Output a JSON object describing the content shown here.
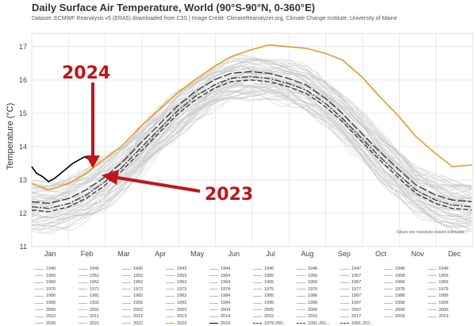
{
  "header": {
    "title": "Daily Surface Air Temperature, World (90°S-90°N, 0-360°E)",
    "subtitle": "Dataset: ECMWF Reanalysis v5 (ERA5) downloaded from C3S | Image Credit: ClimateReanalyzer.org, Climate Change Institute, University of Maine"
  },
  "colors": {
    "background_years": "#c8c8c8",
    "year_2023": "#e39a2b",
    "year_2024": "#000000",
    "climatology": "#333333",
    "annotation": "#c0141a",
    "grid": "#e3e3e3"
  },
  "annotations": {
    "label_2024": "2024",
    "label_2023": "2023",
    "note": "Values are reanalysis-based estimates"
  },
  "chart_data": {
    "type": "line",
    "title": "Daily Surface Air Temperature, World (90°S-90°N, 0-360°E)",
    "xlabel": "",
    "ylabel": "Temperature (°C)",
    "ylim": [
      11,
      17.4
    ],
    "yticks": [
      11,
      12,
      13,
      14,
      15,
      16,
      17
    ],
    "xticks": [
      "Jan",
      "Feb",
      "Mar",
      "Apr",
      "May",
      "Jun",
      "Jul",
      "Aug",
      "Sep",
      "Oct",
      "Nov",
      "Dec"
    ],
    "xlim": [
      1,
      366
    ],
    "grid": true,
    "legend": "bottom",
    "series": [
      {
        "name": "2023",
        "style": "solid",
        "color": "#e39a2b",
        "x": [
          1,
          15,
          32,
          46,
          60,
          75,
          91,
          106,
          121,
          136,
          152,
          166,
          182,
          197,
          213,
          228,
          244,
          258,
          274,
          289,
          305,
          319,
          335,
          349,
          365
        ],
        "y": [
          12.9,
          12.7,
          12.9,
          13.2,
          13.6,
          14.0,
          14.6,
          15.1,
          15.6,
          16.0,
          16.4,
          16.7,
          16.9,
          17.05,
          17.0,
          16.95,
          16.8,
          16.6,
          16.1,
          15.5,
          14.9,
          14.3,
          13.8,
          13.4,
          13.45
        ]
      },
      {
        "name": "2024",
        "style": "solid",
        "color": "#000000",
        "x": [
          1,
          5,
          10,
          15,
          20,
          25,
          30,
          35,
          40,
          45,
          49
        ],
        "y": [
          13.4,
          13.2,
          13.1,
          12.95,
          13.05,
          13.2,
          13.35,
          13.5,
          13.6,
          13.7,
          13.6
        ]
      },
      {
        "name": "1979-2000 mean",
        "style": "dashed",
        "color": "#333333",
        "x": [
          1,
          15,
          32,
          46,
          60,
          75,
          91,
          106,
          121,
          136,
          152,
          166,
          182,
          197,
          213,
          228,
          244,
          258,
          274,
          289,
          305,
          319,
          335,
          349,
          365
        ],
        "y": [
          12.1,
          12.05,
          12.2,
          12.45,
          12.8,
          13.25,
          13.85,
          14.4,
          14.95,
          15.4,
          15.75,
          15.95,
          16.0,
          15.95,
          15.8,
          15.6,
          15.2,
          14.75,
          14.15,
          13.6,
          13.05,
          12.6,
          12.3,
          12.15,
          12.1
        ]
      },
      {
        "name": "1981-2010 mean",
        "style": "dashdot",
        "color": "#333333",
        "x": [
          1,
          15,
          32,
          46,
          60,
          75,
          91,
          106,
          121,
          136,
          152,
          166,
          182,
          197,
          213,
          228,
          244,
          258,
          274,
          289,
          305,
          319,
          335,
          349,
          365
        ],
        "y": [
          12.2,
          12.15,
          12.3,
          12.55,
          12.9,
          13.35,
          13.95,
          14.5,
          15.05,
          15.5,
          15.85,
          16.05,
          16.1,
          16.05,
          15.9,
          15.7,
          15.3,
          14.85,
          14.25,
          13.7,
          13.15,
          12.7,
          12.4,
          12.25,
          12.2
        ]
      },
      {
        "name": "1991-2020 mean",
        "style": "longdash",
        "color": "#333333",
        "x": [
          1,
          15,
          32,
          46,
          60,
          75,
          91,
          106,
          121,
          136,
          152,
          166,
          182,
          197,
          213,
          228,
          244,
          258,
          274,
          289,
          305,
          319,
          335,
          349,
          365
        ],
        "y": [
          12.35,
          12.3,
          12.45,
          12.7,
          13.05,
          13.5,
          14.1,
          14.65,
          15.2,
          15.65,
          16.0,
          16.2,
          16.25,
          16.2,
          16.05,
          15.85,
          15.45,
          15.0,
          14.4,
          13.85,
          13.3,
          12.85,
          12.55,
          12.4,
          12.35
        ]
      }
    ],
    "background_envelope": {
      "name": "1940-2022",
      "x": [
        1,
        15,
        32,
        46,
        60,
        75,
        91,
        106,
        121,
        136,
        152,
        166,
        182,
        197,
        213,
        228,
        244,
        258,
        274,
        289,
        305,
        319,
        335,
        349,
        365
      ],
      "low": [
        11.5,
        11.5,
        11.6,
        11.8,
        12.1,
        12.6,
        13.2,
        13.8,
        14.3,
        14.8,
        15.2,
        15.4,
        15.5,
        15.45,
        15.3,
        15.1,
        14.7,
        14.2,
        13.6,
        13.0,
        12.5,
        12.0,
        11.7,
        11.55,
        11.5
      ],
      "high": [
        12.9,
        12.9,
        13.1,
        13.3,
        13.6,
        14.0,
        14.6,
        15.1,
        15.6,
        16.0,
        16.4,
        16.6,
        16.7,
        16.65,
        16.55,
        16.35,
        16.0,
        15.6,
        15.0,
        14.4,
        13.9,
        13.4,
        13.1,
        12.95,
        12.9
      ]
    }
  },
  "legend": {
    "items": [
      "1940",
      "1941",
      "1942",
      "1943",
      "1944",
      "1945",
      "1946",
      "1947",
      "1948",
      "1949",
      "1950",
      "1951",
      "1952",
      "1953",
      "1954",
      "1955",
      "1956",
      "1957",
      "1958",
      "1959",
      "1960",
      "1961",
      "1962",
      "1963",
      "1964",
      "1965",
      "1966",
      "1967",
      "1968",
      "1969",
      "1970",
      "1971",
      "1972",
      "1973",
      "1974",
      "1975",
      "1976",
      "1977",
      "1978",
      "1979",
      "1980",
      "1981",
      "1982",
      "1983",
      "1984",
      "1985",
      "1986",
      "1987",
      "1988",
      "1989",
      "1990",
      "1991",
      "1992",
      "1993",
      "1994",
      "1995",
      "1996",
      "1997",
      "1998",
      "1999",
      "2000",
      "2001",
      "2002",
      "2003",
      "2004",
      "2005",
      "2006",
      "2007",
      "2008",
      "2009",
      "2010",
      "2011",
      "2012",
      "2013",
      "2014",
      "2015",
      "2016",
      "2017",
      "2018",
      "2019",
      "2020",
      "2021",
      "2022",
      "2023",
      "2024",
      "1979-200...",
      "1981-201...",
      "1991-202..."
    ]
  }
}
